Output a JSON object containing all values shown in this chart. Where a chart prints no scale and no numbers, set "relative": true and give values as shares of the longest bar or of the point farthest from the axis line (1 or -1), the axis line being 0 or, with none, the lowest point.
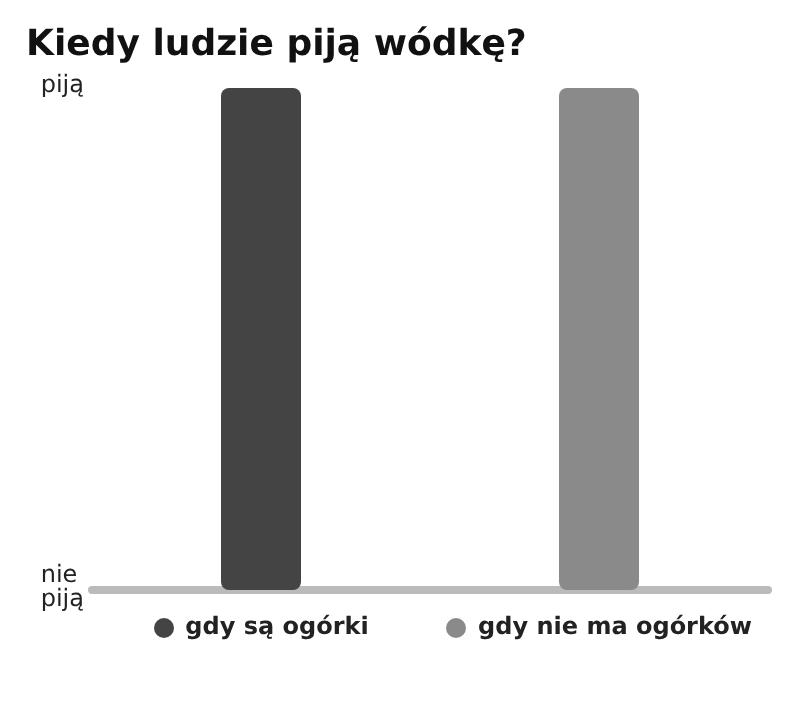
{
  "chart_data": {
    "type": "bar",
    "title": "Kiedy ludzie piją wódkę?",
    "categories": [
      "gdy są ogórki",
      "gdy nie ma ogórków"
    ],
    "values": [
      1,
      1
    ],
    "colors": [
      "#444444",
      "#8a8a8a"
    ],
    "relative": true,
    "annotations": [
      "piją",
      "nie\npiją"
    ]
  }
}
